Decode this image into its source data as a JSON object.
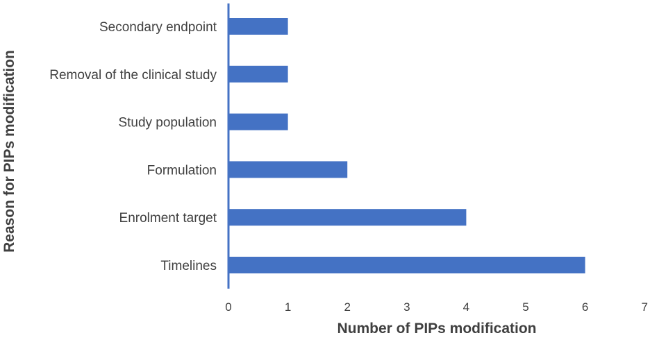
{
  "chart_data": {
    "type": "bar",
    "orientation": "horizontal",
    "categories": [
      "Secondary endpoint",
      "Removal of the clinical study",
      "Study population",
      "Formulation",
      "Enrolment target",
      "Timelines"
    ],
    "values": [
      1,
      1,
      1,
      2,
      4,
      6
    ],
    "xlabel": "Number of PIPs modification",
    "ylabel": "Reason for PIPs modification",
    "xlim": [
      0,
      7
    ],
    "xticks": [
      "0",
      "1",
      "2",
      "3",
      "4",
      "5",
      "6",
      "7"
    ],
    "grid": false,
    "legend": "none",
    "colors": {
      "bar": "#4472C4",
      "axis": "#4472C4",
      "text": "#404040"
    }
  }
}
